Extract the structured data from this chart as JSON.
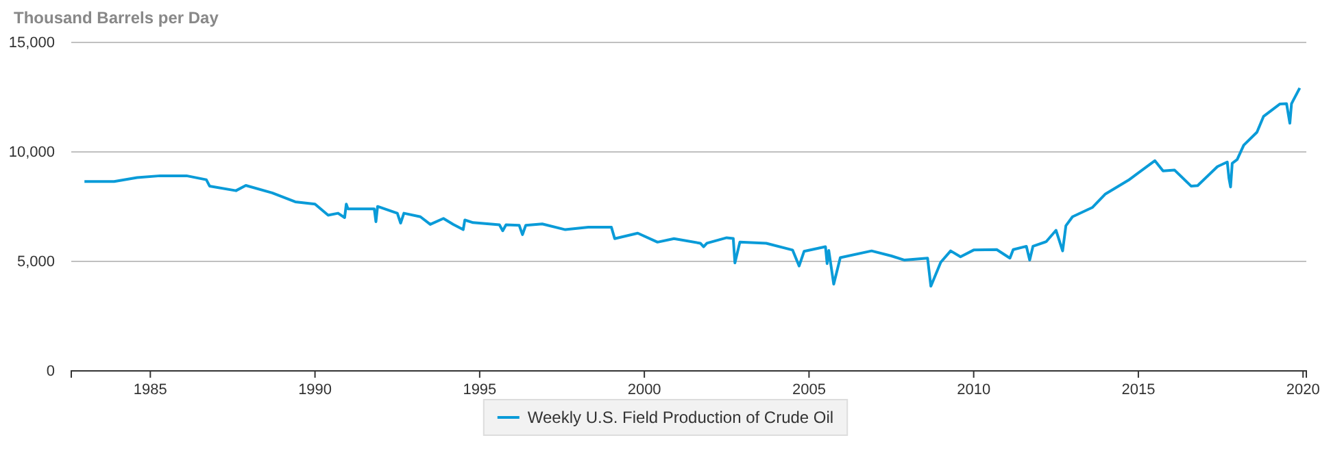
{
  "chart_data": {
    "type": "line",
    "ylabel": "Thousand Barrels per Day",
    "series": [
      {
        "name": "Weekly U.S. Field Production of Crude Oil",
        "color": "#0a9bd8",
        "x": [
          1983.0,
          1983.9,
          1984.6,
          1985.3,
          1986.1,
          1986.7,
          1986.8,
          1987.6,
          1987.9,
          1988.7,
          1989.4,
          1990.0,
          1990.4,
          1990.7,
          1990.9,
          1990.95,
          1991.0,
          1991.5,
          1991.8,
          1991.85,
          1991.9,
          1992.5,
          1992.6,
          1992.7,
          1993.2,
          1993.5,
          1993.9,
          1994.2,
          1994.5,
          1994.55,
          1994.8,
          1995.6,
          1995.7,
          1995.8,
          1996.2,
          1996.3,
          1996.4,
          1996.9,
          1997.6,
          1998.3,
          1999.0,
          1999.1,
          1999.8,
          2000.4,
          2000.9,
          2001.7,
          2001.8,
          2001.9,
          2002.5,
          2002.7,
          2002.75,
          2002.9,
          2003.7,
          2004.5,
          2004.7,
          2004.85,
          2005.5,
          2005.55,
          2005.6,
          2005.75,
          2005.95,
          2006.9,
          2007.5,
          2007.9,
          2008.6,
          2008.7,
          2009.0,
          2009.3,
          2009.6,
          2010.0,
          2010.7,
          2011.1,
          2011.2,
          2011.6,
          2011.7,
          2011.8,
          2012.2,
          2012.5,
          2012.7,
          2012.8,
          2013.0,
          2013.6,
          2014.0,
          2014.7,
          2015.5,
          2015.75,
          2016.1,
          2016.6,
          2016.8,
          2017.4,
          2017.7,
          2017.75,
          2017.8,
          2017.85,
          2018.0,
          2018.2,
          2018.6,
          2018.8,
          2019.3,
          2019.5,
          2019.6,
          2019.65,
          2019.7,
          2019.9
        ],
        "values": [
          8650,
          8650,
          8830,
          8910,
          8910,
          8730,
          8440,
          8230,
          8470,
          8130,
          7720,
          7620,
          7110,
          7200,
          7000,
          7620,
          7400,
          7400,
          7400,
          6810,
          7510,
          7200,
          6750,
          7200,
          7040,
          6690,
          6960,
          6690,
          6450,
          6890,
          6770,
          6670,
          6400,
          6670,
          6650,
          6220,
          6650,
          6710,
          6450,
          6560,
          6560,
          6040,
          6290,
          5880,
          6040,
          5830,
          5670,
          5830,
          6080,
          6050,
          4930,
          5880,
          5830,
          5520,
          4790,
          5460,
          5670,
          4900,
          5500,
          3960,
          5170,
          5480,
          5250,
          5060,
          5150,
          3870,
          4960,
          5480,
          5210,
          5520,
          5540,
          5150,
          5540,
          5690,
          5060,
          5690,
          5900,
          6420,
          5480,
          6630,
          7040,
          7460,
          8080,
          8710,
          9600,
          9130,
          9170,
          8440,
          8460,
          9330,
          9540,
          8810,
          8400,
          9480,
          9650,
          10310,
          10900,
          11620,
          12190,
          12200,
          11310,
          12200,
          12350,
          12920
        ]
      }
    ],
    "xlim": [
      1982.6,
      2020.1
    ],
    "xticks": [
      1985,
      1990,
      1995,
      2000,
      2005,
      2010,
      2015,
      2020
    ],
    "ylim": [
      0,
      15000
    ],
    "yticks": [
      {
        "value": 0,
        "label": "0"
      },
      {
        "value": 5000,
        "label": "5,000"
      },
      {
        "value": 10000,
        "label": "10,000"
      },
      {
        "value": 15000,
        "label": "15,000"
      }
    ],
    "grid": "y",
    "legend": "bottom",
    "marker": "none",
    "line_style": "solid"
  }
}
